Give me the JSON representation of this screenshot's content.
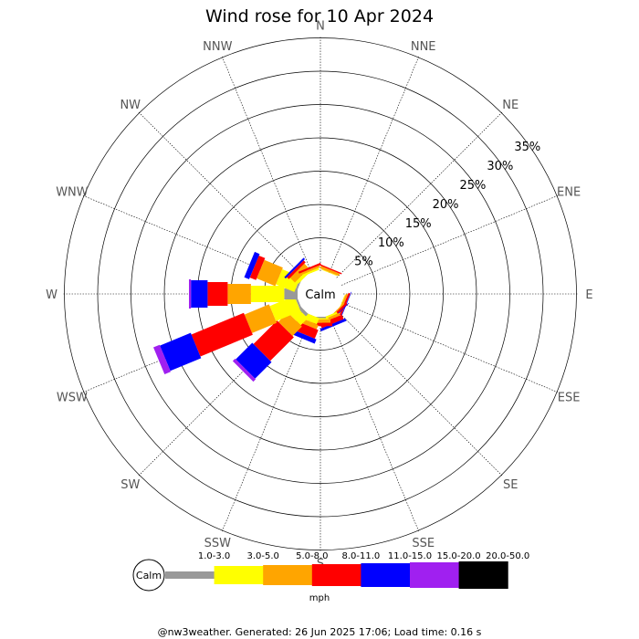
{
  "chart_data": {
    "type": "windrose",
    "title": "Wind rose for 10 Apr 2024",
    "directions": [
      "N",
      "NNE",
      "NE",
      "ENE",
      "E",
      "ESE",
      "SE",
      "SSE",
      "S",
      "SSW",
      "SW",
      "WSW",
      "W",
      "WNW",
      "NW",
      "NNW"
    ],
    "radial_ticks": [
      "5%",
      "10%",
      "15%",
      "20%",
      "25%",
      "30%",
      "35%"
    ],
    "radial_values": [
      5,
      10,
      15,
      20,
      25,
      30,
      35
    ],
    "rmax": 35,
    "calm_label": "Calm",
    "unit": "mph",
    "speed_bins": [
      {
        "label": "1.0-3.0",
        "color": "#999999"
      },
      {
        "label": "3.0-5.0",
        "color": "#ffff00"
      },
      {
        "label": "5.0-8.0",
        "color": "#ffa500"
      },
      {
        "label": "8.0-11.0",
        "color": "#ff0000"
      },
      {
        "label": "11.0-15.0",
        "color": "#0000ff"
      },
      {
        "label": "15.0-20.0",
        "color": "#a020f0"
      },
      {
        "label": "20.0-50.0",
        "color": "#000000"
      }
    ],
    "series": [
      {
        "direction": "NNE",
        "values": [
          0.0,
          0.1,
          0.4,
          0.2,
          0.0,
          0.0,
          0.0
        ]
      },
      {
        "direction": "NE",
        "values": [
          0.0,
          0.0,
          0.0,
          0.0,
          0.0,
          0.0,
          0.0
        ]
      },
      {
        "direction": "ESE",
        "values": [
          0.0,
          0.1,
          0.3,
          0.3,
          0.1,
          0.0,
          0.0
        ]
      },
      {
        "direction": "SE",
        "values": [
          0.0,
          0.0,
          0.2,
          0.3,
          0.1,
          0.0,
          0.0
        ]
      },
      {
        "direction": "SSE",
        "values": [
          0.0,
          0.3,
          0.4,
          0.7,
          0.4,
          0.0,
          0.0
        ]
      },
      {
        "direction": "S",
        "values": [
          0.2,
          0.2,
          0.5,
          0.5,
          0.0,
          0.0,
          0.0
        ]
      },
      {
        "direction": "SSW",
        "values": [
          0.0,
          1.0,
          0.7,
          1.4,
          0.7,
          0.0,
          0.0
        ]
      },
      {
        "direction": "SW",
        "values": [
          0.5,
          1.5,
          2.0,
          5.0,
          3.5,
          0.5,
          0.0
        ]
      },
      {
        "direction": "WSW",
        "values": [
          0.3,
          4.0,
          4.0,
          8.5,
          5.0,
          1.0,
          0.0
        ]
      },
      {
        "direction": "W",
        "values": [
          2.0,
          5.0,
          3.5,
          3.0,
          2.5,
          0.3,
          0.0
        ]
      },
      {
        "direction": "WNW",
        "values": [
          0.3,
          3.0,
          3.0,
          1.0,
          0.8,
          0.0,
          0.0
        ]
      },
      {
        "direction": "NW",
        "values": [
          0.0,
          0.5,
          1.0,
          0.4,
          0.3,
          0.0,
          0.0
        ]
      },
      {
        "direction": "NNW",
        "values": [
          0.0,
          0.3,
          0.3,
          0.3,
          0.0,
          0.0,
          0.0
        ]
      }
    ]
  },
  "footer": "@nw3weather. Generated: 26 Jun 2025 17:06; Load time: 0.16 s"
}
